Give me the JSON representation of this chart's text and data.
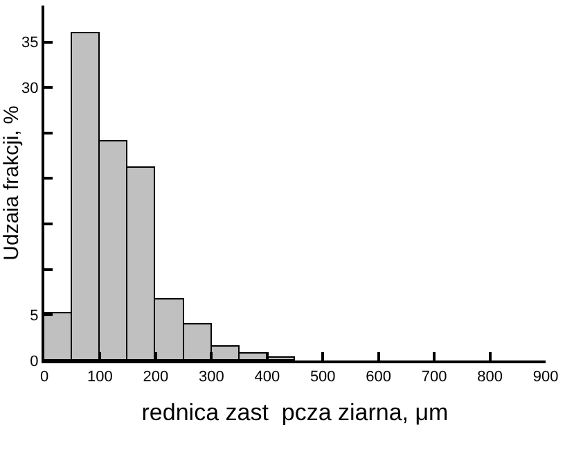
{
  "chart_data": {
    "type": "histogram",
    "xlabel": "rednica zast  pcza ziarna, μm",
    "ylabel": "Udzaia frakcji, %",
    "bins": [
      0,
      50,
      100,
      150,
      200,
      250,
      300,
      350,
      400,
      450
    ],
    "values": [
      5.2,
      35.9,
      24.0,
      21.2,
      6.7,
      3.9,
      1.6,
      0.8,
      0.3
    ],
    "color": "#c0c0c0",
    "xlim": [
      0,
      900
    ],
    "xticks": [
      0,
      100,
      200,
      300,
      400,
      500,
      600,
      700,
      800,
      900
    ],
    "ylim": [
      0,
      39
    ],
    "yticks": [
      0,
      5,
      {
        "value": 10,
        "label": null
      },
      {
        "value": 15,
        "label": null
      },
      {
        "value": 20,
        "label": null
      },
      {
        "value": 25,
        "label": null
      },
      30,
      35
    ],
    "grid": false,
    "legend": false
  }
}
